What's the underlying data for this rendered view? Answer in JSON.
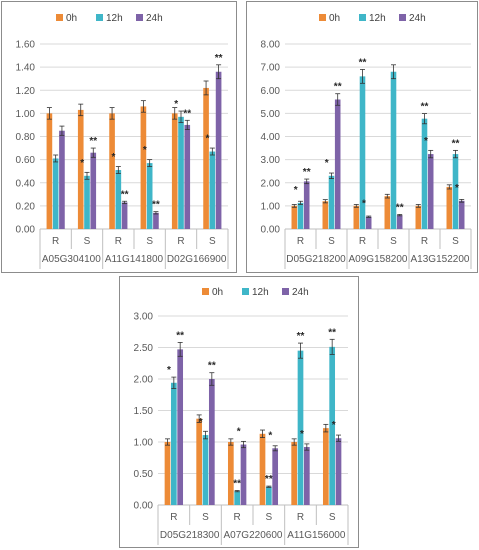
{
  "colors": {
    "0h": "#ed8b37",
    "12h": "#3fb6c8",
    "24h": "#7e63a8",
    "axis": "#bfbfbf",
    "grid": "#d9d9d9"
  },
  "legend": [
    "0h",
    "12h",
    "24h"
  ],
  "chart_data": [
    {
      "type": "bar",
      "legend": [
        "0h",
        "12h",
        "24h"
      ],
      "ylim": [
        0,
        1.6
      ],
      "yticks": [
        "0.00",
        "0.20",
        "0.40",
        "0.60",
        "0.80",
        "1.00",
        "1.20",
        "1.40",
        "1.60"
      ],
      "grid": true,
      "legend_position": "top",
      "genes": [
        "A05G304100",
        "A11G141800",
        "D02G166900"
      ],
      "categories": [
        "R",
        "S",
        "R",
        "S",
        "R",
        "S"
      ],
      "series": [
        {
          "name": "0h",
          "values": [
            1.0,
            1.03,
            1.0,
            1.06,
            1.0,
            1.22
          ],
          "errors": [
            0.05,
            0.05,
            0.05,
            0.05,
            0.05,
            0.06
          ]
        },
        {
          "name": "12h",
          "values": [
            0.61,
            0.46,
            0.51,
            0.57,
            0.97,
            0.67
          ],
          "errors": [
            0.03,
            0.03,
            0.03,
            0.03,
            0.05,
            0.03
          ]
        },
        {
          "name": "24h",
          "values": [
            0.85,
            0.66,
            0.23,
            0.14,
            0.9,
            1.36
          ],
          "errors": [
            0.04,
            0.04,
            0.01,
            0.01,
            0.04,
            0.06
          ]
        }
      ],
      "annotations": [
        [
          "",
          "",
          ""
        ],
        [
          "",
          "*",
          "**"
        ],
        [
          "",
          "*",
          "**"
        ],
        [
          "",
          "*",
          "**"
        ],
        [
          "",
          "*",
          "**"
        ],
        [
          "",
          "*",
          "**"
        ]
      ]
    },
    {
      "type": "bar",
      "legend": [
        "0h",
        "12h",
        "24h"
      ],
      "ylim": [
        0,
        8
      ],
      "yticks": [
        "0.00",
        "1.00",
        "2.00",
        "3.00",
        "4.00",
        "5.00",
        "6.00",
        "7.00",
        "8.00"
      ],
      "grid": true,
      "legend_position": "top",
      "genes": [
        "D05G218200",
        "A09G158200",
        "A13G152200"
      ],
      "categories": [
        "R",
        "S",
        "R",
        "S",
        "R",
        "S"
      ],
      "series": [
        {
          "name": "0h",
          "values": [
            1.0,
            1.2,
            1.0,
            1.42,
            1.0,
            1.82
          ],
          "errors": [
            0.06,
            0.07,
            0.06,
            0.08,
            0.06,
            0.09
          ]
        },
        {
          "name": "12h",
          "values": [
            1.13,
            2.3,
            6.6,
            6.8,
            4.77,
            3.24
          ],
          "errors": [
            0.07,
            0.12,
            0.3,
            0.3,
            0.22,
            0.16
          ]
        },
        {
          "name": "24h",
          "values": [
            2.06,
            5.6,
            0.53,
            0.6,
            3.24,
            1.22
          ],
          "errors": [
            0.1,
            0.25,
            0.03,
            0.03,
            0.16,
            0.06
          ]
        }
      ],
      "annotations": [
        [
          "",
          "*",
          "**"
        ],
        [
          "",
          "*",
          "**"
        ],
        [
          "",
          "**",
          "*"
        ],
        [
          "",
          "",
          "**"
        ],
        [
          "",
          "**",
          "*"
        ],
        [
          "",
          "**",
          "*"
        ]
      ]
    },
    {
      "type": "bar",
      "legend": [
        "0h",
        "12h",
        "24h"
      ],
      "ylim": [
        0,
        3
      ],
      "yticks": [
        "0.00",
        "0.50",
        "1.00",
        "1.50",
        "2.00",
        "2.50",
        "3.00"
      ],
      "grid": true,
      "legend_position": "top",
      "genes": [
        "D05G218300",
        "A07G220600",
        "A11G156000"
      ],
      "categories": [
        "R",
        "S",
        "R",
        "S",
        "R",
        "S"
      ],
      "series": [
        {
          "name": "0h",
          "values": [
            1.0,
            1.37,
            1.0,
            1.13,
            1.0,
            1.22
          ],
          "errors": [
            0.05,
            0.06,
            0.05,
            0.06,
            0.05,
            0.06
          ]
        },
        {
          "name": "12h",
          "values": [
            1.94,
            1.11,
            0.22,
            0.29,
            2.45,
            2.51
          ],
          "errors": [
            0.09,
            0.06,
            0.01,
            0.01,
            0.12,
            0.12
          ]
        },
        {
          "name": "24h",
          "values": [
            2.47,
            2.0,
            0.96,
            0.9,
            0.92,
            1.06
          ],
          "errors": [
            0.11,
            0.1,
            0.05,
            0.04,
            0.05,
            0.05
          ]
        }
      ],
      "annotations": [
        [
          "",
          "*",
          "**"
        ],
        [
          "",
          "*",
          "**"
        ],
        [
          "",
          "**",
          "*"
        ],
        [
          "",
          "**",
          "*"
        ],
        [
          "",
          "**",
          "*"
        ],
        [
          "",
          "**",
          "*"
        ]
      ]
    }
  ]
}
